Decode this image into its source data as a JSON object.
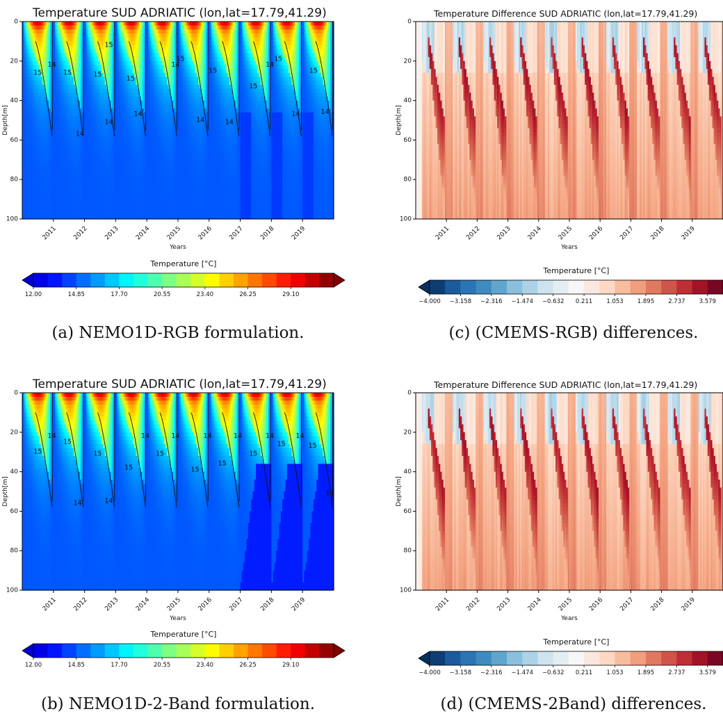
{
  "chart_data": [
    {
      "panel": "a",
      "type": "heatmap",
      "variant": "temperature",
      "title": "Temperature SUD ADRIATIC (lon,lat=17.79,41.29)",
      "caption": "(a) NEMO1D-RGB formulation.",
      "xlabel": "Years",
      "ylabel": "Depth[m]",
      "x_ticks": [
        "2011",
        "2012",
        "2013",
        "2014",
        "2015",
        "2016",
        "2017",
        "2018",
        "2019"
      ],
      "y_ticks": [
        "0",
        "20",
        "40",
        "60",
        "80",
        "100"
      ],
      "ylim": [
        0,
        100
      ],
      "y_inverted": true,
      "colorbar": {
        "label": "Temperature [°C]",
        "ticks": [
          "12.00",
          "14.85",
          "17.70",
          "20.55",
          "23.40",
          "26.25",
          "29.10"
        ],
        "range": [
          12.0,
          31.95
        ],
        "colormap": "jet",
        "extend": "both"
      },
      "contour_labels": [
        {
          "text": "14",
          "year": 2010.95,
          "depth": 22
        },
        {
          "text": "15",
          "year": 2010.5,
          "depth": 26
        },
        {
          "text": "15",
          "year": 2011.45,
          "depth": 26
        },
        {
          "text": "14",
          "year": 2011.85,
          "depth": 57
        },
        {
          "text": "15",
          "year": 2012.42,
          "depth": 27
        },
        {
          "text": "15",
          "year": 2012.78,
          "depth": 12
        },
        {
          "text": "14",
          "year": 2012.78,
          "depth": 51
        },
        {
          "text": "15",
          "year": 2013.48,
          "depth": 29
        },
        {
          "text": "14",
          "year": 2013.72,
          "depth": 47
        },
        {
          "text": "14",
          "year": 2014.92,
          "depth": 22
        },
        {
          "text": "15",
          "year": 2015.08,
          "depth": 19
        },
        {
          "text": "14",
          "year": 2015.72,
          "depth": 50
        },
        {
          "text": "15",
          "year": 2016.12,
          "depth": 25
        },
        {
          "text": "14",
          "year": 2016.65,
          "depth": 51
        },
        {
          "text": "15",
          "year": 2017.42,
          "depth": 33
        },
        {
          "text": "14",
          "year": 2017.95,
          "depth": 22
        },
        {
          "text": "15",
          "year": 2018.22,
          "depth": 19
        },
        {
          "text": "14",
          "year": 2018.78,
          "depth": 47
        },
        {
          "text": "15",
          "year": 2019.35,
          "depth": 25
        },
        {
          "text": "14",
          "year": 2019.72,
          "depth": 46
        }
      ]
    },
    {
      "panel": "b",
      "type": "heatmap",
      "variant": "temperature",
      "title": "Temperature SUD ADRIATIC (lon,lat=17.79,41.29)",
      "caption": "(b) NEMO1D-2-Band formulation.",
      "xlabel": "Years",
      "ylabel": "Depth[m]",
      "x_ticks": [
        "2011",
        "2012",
        "2013",
        "2014",
        "2015",
        "2016",
        "2017",
        "2018",
        "2019"
      ],
      "y_ticks": [
        "0",
        "20",
        "40",
        "60",
        "80",
        "100"
      ],
      "ylim": [
        0,
        100
      ],
      "y_inverted": true,
      "colorbar": {
        "label": "Temperature [°C]",
        "ticks": [
          "12.00",
          "14.85",
          "17.70",
          "20.55",
          "23.40",
          "26.25",
          "29.10"
        ],
        "range": [
          12.0,
          31.95
        ],
        "colormap": "jet",
        "extend": "both"
      },
      "contour_labels": [
        {
          "text": "14",
          "year": 2010.95,
          "depth": 22
        },
        {
          "text": "15",
          "year": 2010.5,
          "depth": 30
        },
        {
          "text": "15",
          "year": 2011.45,
          "depth": 25
        },
        {
          "text": "14",
          "year": 2011.78,
          "depth": 56
        },
        {
          "text": "15",
          "year": 2012.42,
          "depth": 31
        },
        {
          "text": "14",
          "year": 2012.78,
          "depth": 55
        },
        {
          "text": "15",
          "year": 2013.42,
          "depth": 38
        },
        {
          "text": "14",
          "year": 2013.95,
          "depth": 22
        },
        {
          "text": "15",
          "year": 2014.42,
          "depth": 31
        },
        {
          "text": "14",
          "year": 2014.92,
          "depth": 22
        },
        {
          "text": "15",
          "year": 2015.55,
          "depth": 39
        },
        {
          "text": "14",
          "year": 2015.95,
          "depth": 22
        },
        {
          "text": "15",
          "year": 2016.42,
          "depth": 36
        },
        {
          "text": "14",
          "year": 2016.92,
          "depth": 22
        },
        {
          "text": "15",
          "year": 2017.42,
          "depth": 31
        },
        {
          "text": "14",
          "year": 2017.95,
          "depth": 22
        },
        {
          "text": "15",
          "year": 2018.32,
          "depth": 26
        },
        {
          "text": "14",
          "year": 2018.92,
          "depth": 22
        },
        {
          "text": "15",
          "year": 2019.32,
          "depth": 27
        },
        {
          "text": "14",
          "year": 2019.88,
          "depth": 51
        }
      ]
    },
    {
      "panel": "c",
      "type": "heatmap",
      "variant": "difference",
      "title": "Temperature Difference  SUD ADRIATIC (lon,lat=17.79,41.29)",
      "caption": "(c) (CMEMS-RGB) differences.",
      "xlabel": "Years",
      "ylabel": "Depth[m]",
      "x_ticks": [
        "2011",
        "2012",
        "2013",
        "2014",
        "2015",
        "2016",
        "2017",
        "2018",
        "2019"
      ],
      "y_ticks": [
        "0",
        "20",
        "40",
        "60",
        "80",
        "100"
      ],
      "ylim": [
        0,
        100
      ],
      "y_inverted": true,
      "colorbar": {
        "label": "Temperature [°C]",
        "ticks": [
          "−4.000",
          "−3.158",
          "−2.316",
          "−1.474",
          "−0.632",
          "0.211",
          "1.053",
          "1.895",
          "2.737",
          "3.579"
        ],
        "range": [
          -4.0,
          4.0
        ],
        "colormap": "RdBu_r",
        "extend": "both"
      },
      "contour_labels": []
    },
    {
      "panel": "d",
      "type": "heatmap",
      "variant": "difference",
      "title": "Temperature Difference SUD ADRIATIC (lon,lat=17.79,41.29)",
      "caption": "(d) (CMEMS-2Band) differences.",
      "xlabel": "Years",
      "ylabel": "Depth[m]",
      "x_ticks": [
        "2011",
        "2012",
        "2013",
        "2014",
        "2015",
        "2016",
        "2017",
        "2018",
        "2019"
      ],
      "y_ticks": [
        "0",
        "20",
        "40",
        "60",
        "80",
        "100"
      ],
      "ylim": [
        0,
        100
      ],
      "y_inverted": true,
      "colorbar": {
        "label": "Temperature [°C]",
        "ticks": [
          "−4.000",
          "−3.158",
          "−2.316",
          "−1.474",
          "−0.632",
          "0.211",
          "1.053",
          "1.895",
          "2.737",
          "3.579"
        ],
        "range": [
          -4.0,
          4.0
        ],
        "colormap": "RdBu_r",
        "extend": "both"
      },
      "contour_labels": []
    }
  ]
}
